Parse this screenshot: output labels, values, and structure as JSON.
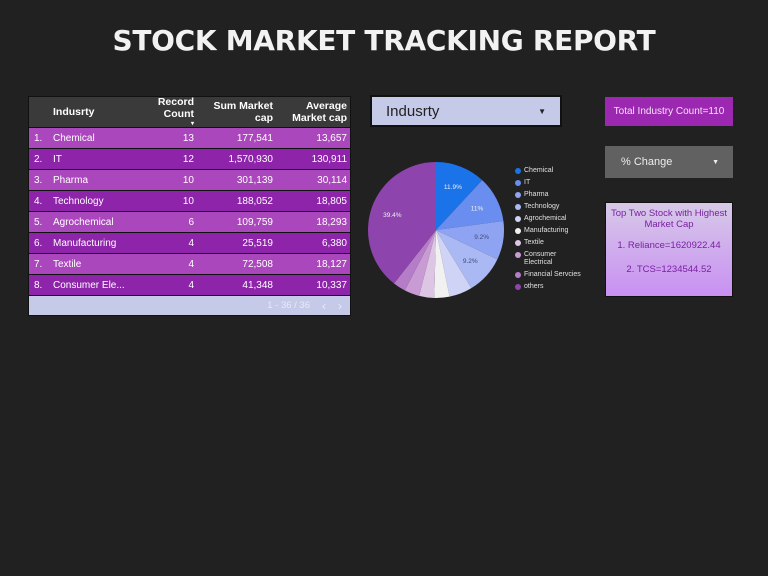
{
  "page": {
    "title": "STOCK MARKET TRACKING REPORT"
  },
  "table": {
    "headers": {
      "industry": "Indusrty",
      "record_count": "Record Count",
      "sum_market_cap_1": "Sum Market",
      "sum_market_cap_2": "cap",
      "avg_market_cap_1": "Average",
      "avg_market_cap_2": "Market cap",
      "sort_indicator": "▾"
    },
    "rows": [
      {
        "idx": "1.",
        "industry": "Chemical",
        "count": "13",
        "sum": "177,541",
        "avg": "13,657"
      },
      {
        "idx": "2.",
        "industry": "IT",
        "count": "12",
        "sum": "1,570,930",
        "avg": "130,911"
      },
      {
        "idx": "3.",
        "industry": "Pharma",
        "count": "10",
        "sum": "301,139",
        "avg": "30,114"
      },
      {
        "idx": "4.",
        "industry": "Technology",
        "count": "10",
        "sum": "188,052",
        "avg": "18,805"
      },
      {
        "idx": "5.",
        "industry": "Agrochemical",
        "count": "6",
        "sum": "109,759",
        "avg": "18,293"
      },
      {
        "idx": "6.",
        "industry": "Manufacturing",
        "count": "4",
        "sum": "25,519",
        "avg": "6,380"
      },
      {
        "idx": "7.",
        "industry": "Textile",
        "count": "4",
        "sum": "72,508",
        "avg": "18,127"
      },
      {
        "idx": "8.",
        "industry": "Consumer Ele...",
        "count": "4",
        "sum": "41,348",
        "avg": "10,337"
      }
    ],
    "pagination": {
      "range": "1 - 36 / 36",
      "prev_icon": "‹",
      "next_icon": "›"
    }
  },
  "industry_filter": {
    "label": "Indusrty",
    "arrow": "▼"
  },
  "total_count": {
    "label": "Total Industry Count=110"
  },
  "change_filter": {
    "label": "% Change",
    "arrow": "▼"
  },
  "top_stocks": {
    "heading": "Top Two Stock with Highest Market Cap",
    "items": [
      "1. Reliance=1620922.44",
      "2. TCS=1234544.52"
    ]
  },
  "chart_data": {
    "type": "pie",
    "title": "",
    "legend_position": "right",
    "categories": [
      "Chemical",
      "IT",
      "Pharma",
      "Technology",
      "Agrochemical",
      "Manufacturing",
      "Textile",
      "Consumer Electrical",
      "Financial Servcies",
      "others"
    ],
    "values": [
      11.9,
      11.0,
      9.2,
      9.2,
      5.5,
      3.6,
      3.6,
      3.6,
      3.0,
      39.4
    ],
    "labels_shown": [
      "11.9%",
      "11%",
      "9.2%",
      "9.2%",
      "",
      "",
      "",
      "",
      "",
      "39.4%"
    ],
    "colors": [
      "#1a73e8",
      "#6a8ef0",
      "#8ea4f2",
      "#aab8f3",
      "#cfd3f5",
      "#f1f1f1",
      "#dcc6e4",
      "#c89bd4",
      "#b57cc8",
      "#8e44ad"
    ]
  },
  "legend": {
    "items": [
      {
        "label": "Chemical",
        "color": "#1a73e8"
      },
      {
        "label": "IT",
        "color": "#6a8ef0"
      },
      {
        "label": "Pharma",
        "color": "#8ea4f2"
      },
      {
        "label": "Technology",
        "color": "#aab8f3"
      },
      {
        "label": "Agrochemical",
        "color": "#cfd3f5"
      },
      {
        "label": "Manufacturing",
        "color": "#f1f1f1"
      },
      {
        "label": "Textile",
        "color": "#dcc6e4"
      },
      {
        "label": "Consumer Electrical",
        "color": "#c89bd4"
      },
      {
        "label": "Financial Servcies",
        "color": "#b57cc8"
      },
      {
        "label": "others",
        "color": "#8e44ad"
      }
    ]
  }
}
